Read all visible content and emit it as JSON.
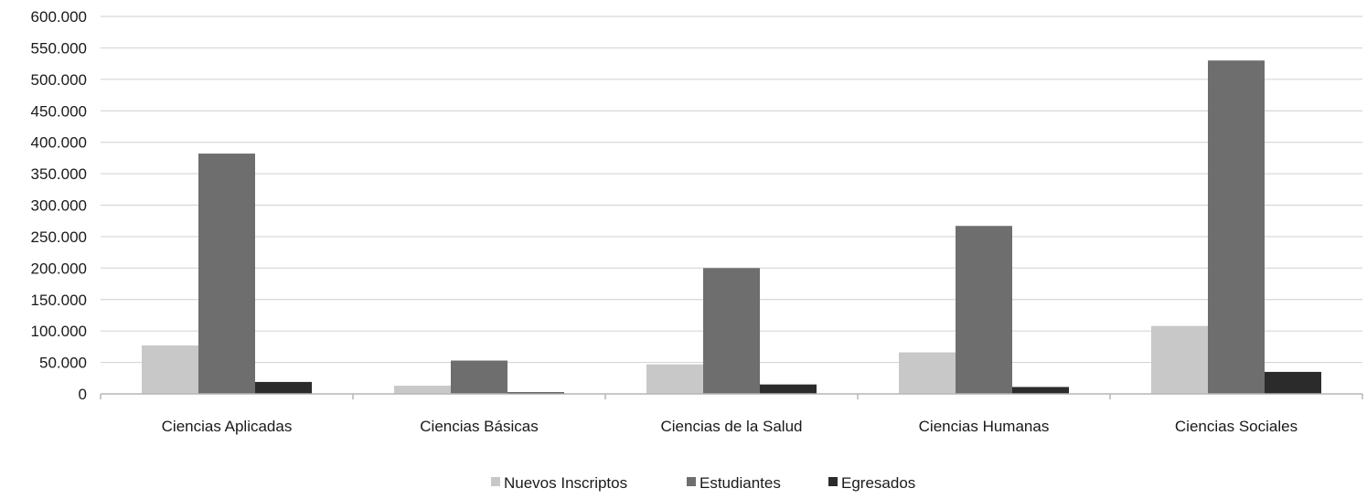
{
  "chart_data": {
    "type": "bar",
    "title": "",
    "xlabel": "",
    "ylabel": "",
    "ylim": [
      0,
      600000
    ],
    "y_ticks": [
      0,
      50000,
      100000,
      150000,
      200000,
      250000,
      300000,
      350000,
      400000,
      450000,
      500000,
      550000,
      600000
    ],
    "y_tick_labels": [
      "0",
      "50.000",
      "100.000",
      "150.000",
      "200.000",
      "250.000",
      "300.000",
      "350.000",
      "400.000",
      "450.000",
      "500.000",
      "550.000",
      "600.000"
    ],
    "grid": true,
    "legend_position": "bottom",
    "categories": [
      "Ciencias Aplicadas",
      "Ciencias Básicas",
      "Ciencias de la Salud",
      "Ciencias Humanas",
      "Ciencias Sociales"
    ],
    "series": [
      {
        "name": "Nuevos Inscriptos",
        "color": "#c8c8c8",
        "values": [
          77000,
          13000,
          47000,
          66000,
          108000
        ]
      },
      {
        "name": "Estudiantes",
        "color": "#6e6e6e",
        "values": [
          382000,
          53000,
          200000,
          267000,
          530000
        ]
      },
      {
        "name": "Egresados",
        "color": "#2b2b2b",
        "values": [
          19000,
          2500,
          15000,
          11000,
          35000
        ]
      }
    ]
  }
}
